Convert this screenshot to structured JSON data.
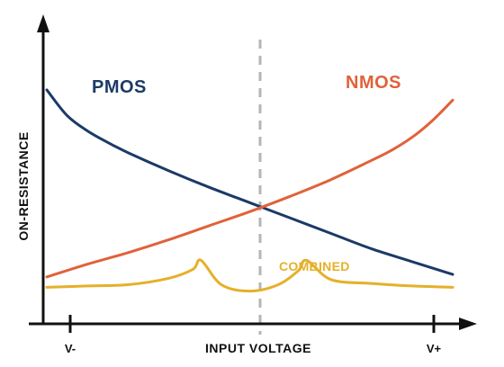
{
  "chart_data": {
    "type": "line",
    "title": "",
    "xlabel": "INPUT VOLTAGE",
    "ylabel": "ON-RESISTANCE",
    "x_ticks": [
      "V-",
      "V+"
    ],
    "xlim": [
      0,
      1
    ],
    "ylim": [
      0,
      1
    ],
    "grid": false,
    "legend": "none",
    "reference_lines": [
      {
        "axis": "x",
        "value": 0.5,
        "style": "dashed",
        "color": "#b5b5b5"
      }
    ],
    "series": [
      {
        "name": "PMOS",
        "color": "#1b3a66",
        "x": [
          0.0,
          0.05,
          0.1,
          0.15,
          0.2,
          0.3,
          0.4,
          0.5,
          0.6,
          0.7,
          0.8,
          0.9,
          1.0
        ],
        "y": [
          0.86,
          0.76,
          0.7,
          0.655,
          0.615,
          0.545,
          0.48,
          0.42,
          0.36,
          0.3,
          0.24,
          0.19,
          0.14
        ]
      },
      {
        "name": "NMOS",
        "color": "#e0623a",
        "x": [
          0.0,
          0.1,
          0.2,
          0.3,
          0.4,
          0.5,
          0.6,
          0.7,
          0.8,
          0.85,
          0.9,
          0.95,
          1.0
        ],
        "y": [
          0.13,
          0.18,
          0.225,
          0.275,
          0.33,
          0.385,
          0.445,
          0.51,
          0.585,
          0.625,
          0.675,
          0.74,
          0.82
        ]
      },
      {
        "name": "COMBINED",
        "color": "#e5b02a",
        "x": [
          0.0,
          0.1,
          0.2,
          0.3,
          0.36,
          0.38,
          0.43,
          0.5,
          0.57,
          0.62,
          0.64,
          0.7,
          0.8,
          0.9,
          1.0
        ],
        "y": [
          0.09,
          0.095,
          0.1,
          0.125,
          0.16,
          0.195,
          0.1,
          0.075,
          0.1,
          0.155,
          0.195,
          0.12,
          0.105,
          0.095,
          0.09
        ]
      }
    ]
  }
}
